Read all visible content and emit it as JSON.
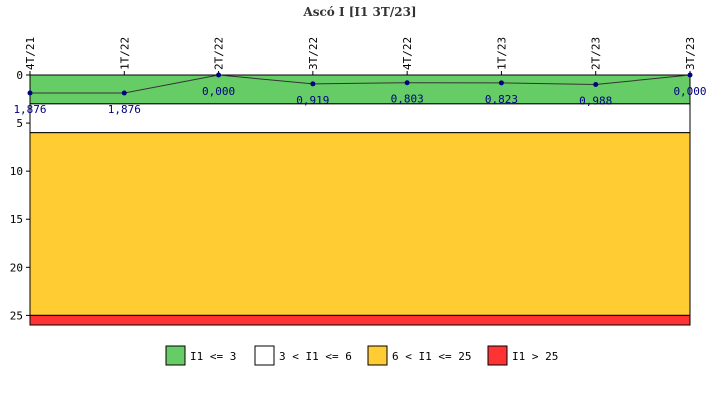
{
  "chart_data": {
    "type": "line",
    "title": "Ascó I [I1 3T/23]",
    "categories": [
      "4T/21",
      "1T/22",
      "2T/22",
      "3T/22",
      "4T/22",
      "1T/23",
      "2T/23",
      "3T/23"
    ],
    "series": [
      {
        "values": [
          1.876,
          1.876,
          0.0,
          0.919,
          0.803,
          0.823,
          0.988,
          0.0
        ],
        "value_labels": [
          "1,876",
          "1,876",
          "0,000",
          "0,919",
          "0,803",
          "0,823",
          "0,988",
          "0,000"
        ],
        "color": "#000080",
        "line_color": "#333333"
      }
    ],
    "yaxis": {
      "inverted": true,
      "ylim": [
        0,
        26
      ],
      "ticks": [
        "0",
        "5",
        "10",
        "15",
        "20",
        "25"
      ]
    },
    "bands": [
      {
        "from": 0,
        "to": 3,
        "color": "#66CC66",
        "label": "I1 <= 3"
      },
      {
        "from": 3,
        "to": 6,
        "color": "#FFFFFF",
        "label": "3 < I1 <= 6"
      },
      {
        "from": 6,
        "to": 25,
        "color": "#FFCC33",
        "label": "6 < I1 <= 25"
      },
      {
        "from": 25,
        "to": 26,
        "color": "#FF3333",
        "label": "I1 > 25"
      }
    ],
    "legend_position": "bottom",
    "grid": false
  }
}
